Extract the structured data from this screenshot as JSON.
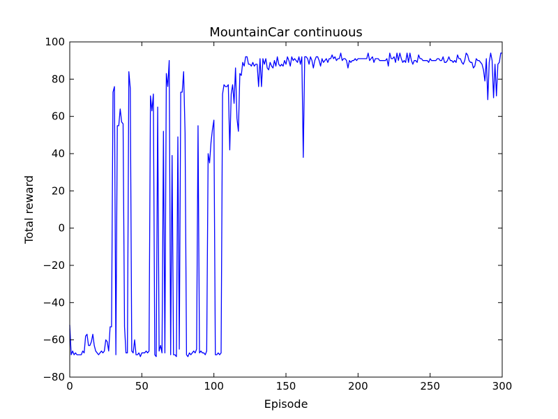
{
  "chart_data": {
    "type": "line",
    "title": "MountainCar continuous",
    "xlabel": "Episode",
    "ylabel": "Total reward",
    "xlim": [
      0,
      300
    ],
    "ylim": [
      -80,
      100
    ],
    "x_ticks": [
      0,
      50,
      100,
      150,
      200,
      250,
      300
    ],
    "y_ticks": [
      -80,
      -60,
      -40,
      -20,
      0,
      20,
      40,
      60,
      80,
      100
    ],
    "x_tick_labels": [
      "0",
      "50",
      "100",
      "150",
      "200",
      "250",
      "300"
    ],
    "y_tick_labels": [
      "−80",
      "−60",
      "−40",
      "−20",
      "0",
      "20",
      "40",
      "60",
      "80",
      "100"
    ],
    "grid": false,
    "line_color": "#0000ff",
    "series": [
      {
        "x_start": 0,
        "x_step": 1,
        "values": [
          -52,
          -68,
          -66,
          -68,
          -67,
          -68,
          -68,
          -68,
          -68,
          -66,
          -67,
          -58,
          -57,
          -63,
          -63,
          -61,
          -57,
          -63,
          -66,
          -67,
          -68,
          -67,
          -66,
          -67,
          -66,
          -60,
          -61,
          -66,
          -53,
          -53,
          73,
          76,
          -68,
          55,
          55,
          64,
          57,
          56,
          -53,
          -67,
          -67,
          84,
          75,
          -66,
          -67,
          -60,
          -68,
          -68,
          -67,
          -69,
          -67,
          -67,
          -67,
          -66,
          -67,
          -66,
          71,
          63,
          72,
          -68,
          -69,
          65,
          -66,
          -63,
          -67,
          52,
          -67,
          83,
          76,
          90,
          -68,
          39,
          -68,
          -68,
          -69,
          49,
          -65,
          73,
          73,
          84,
          51,
          -68,
          -69,
          -67,
          -68,
          -67,
          -66,
          -67,
          -65,
          55,
          -67,
          -66,
          -67,
          -67,
          -68,
          -66,
          40,
          35,
          46,
          53,
          58,
          -68,
          -68,
          -67,
          -68,
          -67,
          72,
          77,
          76,
          76,
          77,
          42,
          72,
          77,
          67,
          86,
          59,
          52,
          83,
          82,
          89,
          87,
          92,
          92,
          88,
          88,
          87,
          89,
          87,
          88,
          88,
          76,
          91,
          76,
          91,
          88,
          91,
          86,
          85,
          89,
          87,
          86,
          90,
          87,
          92,
          88,
          87,
          88,
          87,
          90,
          88,
          92,
          90,
          87,
          92,
          90,
          91,
          90,
          89,
          92,
          88,
          92,
          38,
          92,
          92,
          91,
          88,
          92,
          90,
          86,
          90,
          92,
          92,
          90,
          87,
          91,
          89,
          90,
          91,
          89,
          91,
          91,
          93,
          91,
          92,
          90,
          91,
          91,
          94,
          90,
          91,
          91,
          90,
          86,
          90,
          89,
          90,
          90,
          91,
          90,
          91,
          91,
          91,
          91,
          91,
          91,
          91,
          94,
          90,
          91,
          92,
          89,
          91,
          91,
          91,
          90,
          90,
          90,
          90,
          90,
          91,
          87,
          94,
          91,
          91,
          92,
          89,
          94,
          90,
          94,
          91,
          89,
          90,
          89,
          94,
          89,
          94,
          90,
          88,
          90,
          90,
          89,
          93,
          91,
          91,
          90,
          90,
          90,
          90,
          89,
          91,
          90,
          90,
          90,
          90,
          91,
          91,
          90,
          90,
          92,
          89,
          89,
          90,
          92,
          90,
          90,
          89,
          90,
          89,
          93,
          91,
          91,
          89,
          88,
          90,
          94,
          93,
          90,
          89,
          89,
          86,
          87,
          91,
          90,
          90,
          89,
          88,
          85,
          79,
          91,
          69,
          89,
          94,
          90,
          70,
          88,
          71,
          88,
          89,
          94,
          94
        ]
      }
    ]
  }
}
